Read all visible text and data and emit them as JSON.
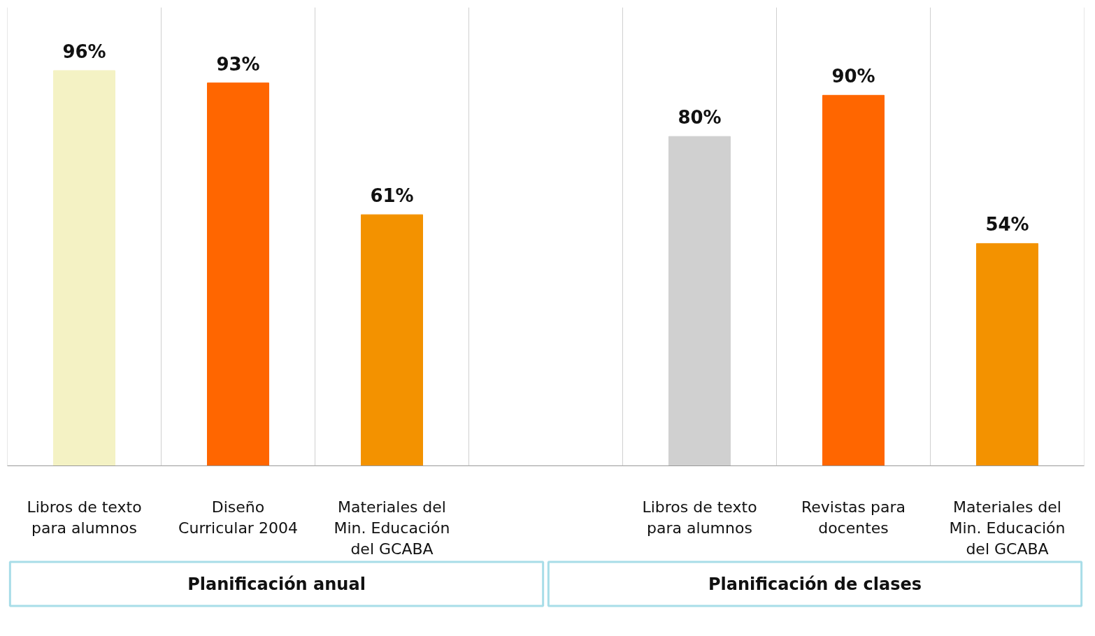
{
  "chart_data": {
    "type": "bar",
    "categories": [
      "Libros de texto para alumnos",
      "Diseño Curricular 2004",
      "Materiales del Min. Educación del GCABA",
      null,
      "Libros de texto para alumnos",
      "Revistas para docentes",
      "Materiales del Min. Educación del GCABA"
    ],
    "values": [
      96,
      93,
      61,
      null,
      80,
      90,
      54
    ],
    "colors": [
      "#f4f2c4",
      "#ff6600",
      "#f39200",
      null,
      "#d0d0d0",
      "#ff6600",
      "#f39200"
    ],
    "value_labels": [
      "96%",
      "93%",
      "61%",
      null,
      "80%",
      "90%",
      "54%"
    ],
    "annotations": [
      "Planificación anual",
      "Planificación de clases"
    ]
  }
}
